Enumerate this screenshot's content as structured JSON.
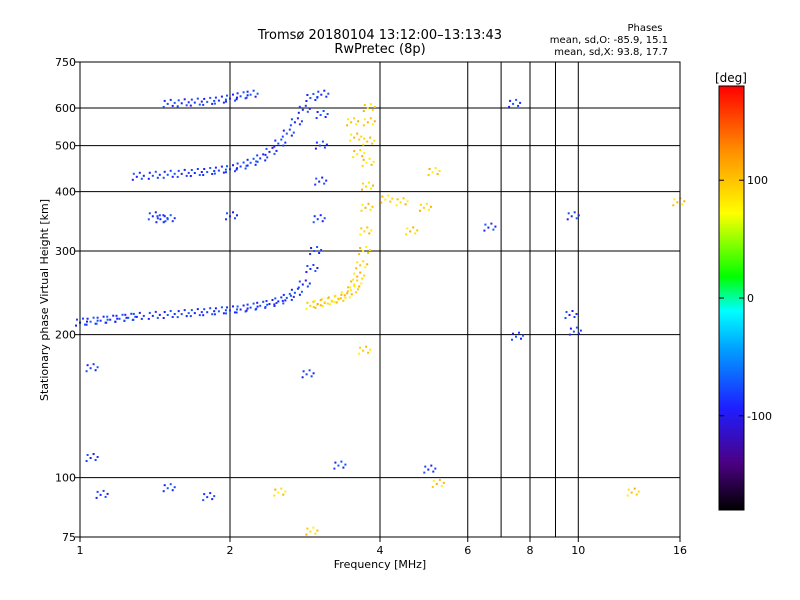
{
  "chart_data": {
    "type": "scatter",
    "title": "Tromsø 20180104 13:12:00–13:13:43",
    "subtitle": "RwPretec (8p)",
    "xlabel": "Frequency [MHz]",
    "ylabel": "Stationary phase Virtual Height [km]",
    "x_scale": "log",
    "y_scale": "log",
    "xlim": [
      1,
      16
    ],
    "ylim": [
      75,
      750
    ],
    "x_ticks": [
      1,
      2,
      4,
      6,
      8,
      10,
      16
    ],
    "x_tick_labels": [
      "1",
      "2",
      "4",
      "6",
      "8",
      "10",
      "16"
    ],
    "x_minor_ticks": [
      7,
      9
    ],
    "y_ticks": [
      75,
      100,
      200,
      300,
      400,
      500,
      600,
      750
    ],
    "y_tick_labels": [
      "75",
      "100",
      "200",
      "300",
      "400",
      "500",
      "600",
      "750"
    ],
    "grid": true,
    "annotation": {
      "heading": "Phases",
      "line_o": "mean, sd,O: -85.9, 15.1",
      "line_x": "mean, sd,X:  93.8, 17.7"
    },
    "colorbar": {
      "label": "[deg]",
      "range": [
        -180,
        180
      ],
      "ticks": [
        100,
        0,
        -100
      ],
      "tick_labels": [
        "100",
        "0",
        "-100"
      ]
    },
    "series": [
      {
        "mode": "O",
        "mean_phase_deg": -85.9,
        "phase_sd_deg": 15.1,
        "points": [
          [
            1.0,
            212
          ],
          [
            1.05,
            213
          ],
          [
            1.1,
            214
          ],
          [
            1.15,
            215
          ],
          [
            1.2,
            216
          ],
          [
            1.25,
            217
          ],
          [
            1.3,
            218
          ],
          [
            1.4,
            219
          ],
          [
            1.5,
            220
          ],
          [
            1.6,
            221
          ],
          [
            1.7,
            222
          ],
          [
            1.8,
            223
          ],
          [
            1.9,
            224
          ],
          [
            2.0,
            225
          ],
          [
            2.1,
            226
          ],
          [
            2.2,
            228
          ],
          [
            2.3,
            230
          ],
          [
            2.4,
            232
          ],
          [
            2.5,
            235
          ],
          [
            2.6,
            239
          ],
          [
            2.7,
            245
          ],
          [
            2.8,
            255
          ],
          [
            2.9,
            275
          ],
          [
            2.95,
            300
          ],
          [
            3.0,
            350
          ],
          [
            3.02,
            420
          ],
          [
            3.03,
            500
          ],
          [
            3.04,
            580
          ],
          [
            3.05,
            640
          ],
          [
            1.3,
            430
          ],
          [
            1.4,
            432
          ],
          [
            1.5,
            434
          ],
          [
            1.6,
            436
          ],
          [
            1.7,
            438
          ],
          [
            1.8,
            440
          ],
          [
            1.9,
            443
          ],
          [
            2.0,
            446
          ],
          [
            2.1,
            452
          ],
          [
            2.2,
            460
          ],
          [
            2.3,
            470
          ],
          [
            2.4,
            485
          ],
          [
            2.5,
            505
          ],
          [
            2.6,
            530
          ],
          [
            2.7,
            560
          ],
          [
            2.8,
            595
          ],
          [
            2.9,
            630
          ],
          [
            1.5,
            612
          ],
          [
            1.6,
            614
          ],
          [
            1.7,
            616
          ],
          [
            1.8,
            618
          ],
          [
            1.9,
            622
          ],
          [
            2.0,
            628
          ],
          [
            2.1,
            635
          ],
          [
            2.2,
            640
          ],
          [
            1.4,
            355
          ],
          [
            1.45,
            350
          ],
          [
            1.5,
            350
          ],
          [
            1.05,
            170
          ],
          [
            1.05,
            110
          ],
          [
            1.1,
            92
          ],
          [
            1.5,
            95
          ],
          [
            1.8,
            91
          ],
          [
            2.0,
            355
          ],
          [
            2.85,
            165
          ],
          [
            3.3,
            106
          ],
          [
            5.0,
            104
          ],
          [
            6.6,
            336
          ],
          [
            7.4,
            612
          ],
          [
            7.5,
            198
          ],
          [
            9.6,
            220
          ],
          [
            9.7,
            355
          ],
          [
            9.8,
            203
          ]
        ]
      },
      {
        "mode": "X",
        "mean_phase_deg": 93.8,
        "phase_sd_deg": 17.7,
        "points": [
          [
            2.9,
            230
          ],
          [
            3.0,
            232
          ],
          [
            3.1,
            234
          ],
          [
            3.2,
            236
          ],
          [
            3.3,
            238
          ],
          [
            3.4,
            242
          ],
          [
            3.5,
            248
          ],
          [
            3.55,
            255
          ],
          [
            3.6,
            265
          ],
          [
            3.65,
            280
          ],
          [
            3.7,
            300
          ],
          [
            3.72,
            330
          ],
          [
            3.74,
            370
          ],
          [
            3.75,
            410
          ],
          [
            3.76,
            460
          ],
          [
            3.77,
            510
          ],
          [
            3.78,
            560
          ],
          [
            3.78,
            600
          ],
          [
            3.6,
            480
          ],
          [
            3.55,
            520
          ],
          [
            3.5,
            560
          ],
          [
            4.1,
            385
          ],
          [
            4.4,
            380
          ],
          [
            4.6,
            330
          ],
          [
            4.9,
            370
          ],
          [
            5.1,
            440
          ],
          [
            3.7,
            185
          ],
          [
            5.2,
            97
          ],
          [
            2.9,
            77
          ],
          [
            2.5,
            93
          ],
          [
            12.8,
            93
          ],
          [
            15.8,
            380
          ]
        ]
      }
    ]
  }
}
